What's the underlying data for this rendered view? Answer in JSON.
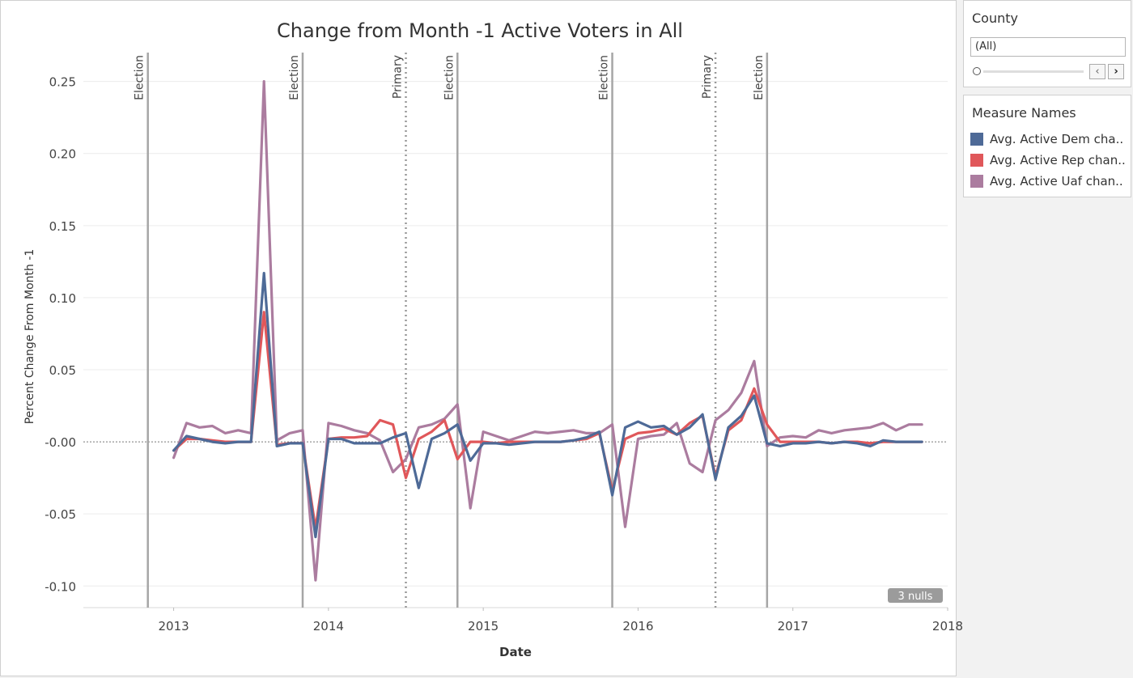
{
  "colors": {
    "dem": "#4e6a97",
    "rep": "#e0575a",
    "uaf": "#ab7c9f"
  },
  "filter": {
    "title": "County",
    "value": "(All)"
  },
  "legend": {
    "title": "Measure Names",
    "items": [
      {
        "label": "Avg. Active Dem cha..",
        "color": "#4e6a97"
      },
      {
        "label": "Avg. Active Rep chan..",
        "color": "#e0575a"
      },
      {
        "label": "Avg. Active Uaf chan..",
        "color": "#ab7c9f"
      }
    ]
  },
  "chart_data": {
    "type": "line",
    "title": "Change from Month -1 Active Voters in All",
    "xlabel": "Date",
    "ylabel": "Percent Change From Month -1",
    "xlim": [
      "2012-06",
      "2018-01"
    ],
    "ylim": [
      -0.115,
      0.27
    ],
    "x_ticks": [
      "2013",
      "2014",
      "2015",
      "2016",
      "2017",
      "2018"
    ],
    "y_ticks": [
      0.25,
      0.2,
      0.15,
      0.1,
      0.05,
      0.0,
      -0.05,
      -0.1
    ],
    "y_tick_labels": [
      "0.25",
      "0.20",
      "0.15",
      "0.10",
      "0.05",
      "-0.00",
      "-0.05",
      "-0.10"
    ],
    "grid": true,
    "legend_position": "right",
    "null_badge": "3 nulls",
    "events": [
      {
        "date": "2012-11",
        "label": "Election",
        "style": "solid"
      },
      {
        "date": "2013-11",
        "label": "Election",
        "style": "solid"
      },
      {
        "date": "2014-07",
        "label": "Primary",
        "style": "dotted"
      },
      {
        "date": "2014-11",
        "label": "Election",
        "style": "solid"
      },
      {
        "date": "2015-11",
        "label": "Election",
        "style": "solid"
      },
      {
        "date": "2016-07",
        "label": "Primary",
        "style": "dotted"
      },
      {
        "date": "2016-11",
        "label": "Election",
        "style": "solid"
      }
    ],
    "x": [
      "2013-01",
      "2013-02",
      "2013-03",
      "2013-04",
      "2013-05",
      "2013-06",
      "2013-07",
      "2013-08",
      "2013-09",
      "2013-10",
      "2013-11",
      "2013-12",
      "2014-01",
      "2014-02",
      "2014-03",
      "2014-04",
      "2014-05",
      "2014-06",
      "2014-07",
      "2014-08",
      "2014-09",
      "2014-10",
      "2014-11",
      "2014-12",
      "2015-01",
      "2015-02",
      "2015-03",
      "2015-04",
      "2015-05",
      "2015-06",
      "2015-07",
      "2015-08",
      "2015-09",
      "2015-10",
      "2015-11",
      "2015-12",
      "2016-01",
      "2016-02",
      "2016-03",
      "2016-04",
      "2016-05",
      "2016-06",
      "2016-07",
      "2016-08",
      "2016-09",
      "2016-10",
      "2016-11",
      "2016-12",
      "2017-01",
      "2017-02",
      "2017-03",
      "2017-04",
      "2017-05",
      "2017-06",
      "2017-07",
      "2017-08",
      "2017-09",
      "2017-10",
      "2017-11"
    ],
    "series": [
      {
        "name": "Avg. Active Uaf chan..",
        "color": "#ab7c9f",
        "values": [
          -0.011,
          0.013,
          0.01,
          0.011,
          0.006,
          0.008,
          0.006,
          0.25,
          0.001,
          0.006,
          0.008,
          -0.096,
          0.013,
          0.011,
          0.008,
          0.006,
          0.001,
          -0.021,
          -0.012,
          0.01,
          0.012,
          0.016,
          0.026,
          -0.046,
          0.007,
          0.004,
          0.001,
          0.004,
          0.007,
          0.006,
          0.007,
          0.008,
          0.006,
          0.006,
          0.012,
          -0.059,
          0.002,
          0.004,
          0.005,
          0.013,
          -0.015,
          -0.021,
          0.015,
          0.022,
          0.034,
          0.056,
          -0.003,
          0.003,
          0.004,
          0.003,
          0.008,
          0.006,
          0.008,
          0.009,
          0.01,
          0.013,
          0.008,
          0.012,
          0.012
        ]
      },
      {
        "name": "Avg. Active Rep chan..",
        "color": "#e0575a",
        "values": [
          -0.006,
          0.002,
          0.002,
          0.001,
          0.0,
          0.0,
          0.0,
          0.09,
          -0.002,
          -0.001,
          -0.001,
          -0.06,
          0.002,
          0.003,
          0.003,
          0.004,
          0.015,
          0.012,
          -0.025,
          0.002,
          0.007,
          0.015,
          -0.012,
          0.0,
          0.0,
          -0.001,
          0.0,
          0.0,
          0.0,
          0.0,
          0.0,
          0.001,
          0.002,
          0.006,
          -0.034,
          0.002,
          0.006,
          0.007,
          0.009,
          0.005,
          0.013,
          0.018,
          -0.024,
          0.008,
          0.015,
          0.037,
          0.012,
          0.0,
          0.0,
          0.0,
          0.0,
          -0.001,
          0.0,
          0.0,
          -0.001,
          0.0,
          0.0,
          0.0,
          0.0
        ]
      },
      {
        "name": "Avg. Active Dem cha..",
        "color": "#4e6a97",
        "values": [
          -0.006,
          0.004,
          0.002,
          0.0,
          -0.001,
          0.0,
          0.0,
          0.117,
          -0.003,
          -0.001,
          -0.001,
          -0.066,
          0.002,
          0.002,
          -0.001,
          -0.001,
          -0.001,
          0.003,
          0.006,
          -0.032,
          0.002,
          0.006,
          0.012,
          -0.013,
          -0.001,
          -0.001,
          -0.002,
          -0.001,
          0.0,
          0.0,
          0.0,
          0.001,
          0.003,
          0.007,
          -0.037,
          0.01,
          0.014,
          0.01,
          0.011,
          0.005,
          0.01,
          0.019,
          -0.026,
          0.01,
          0.018,
          0.032,
          -0.001,
          -0.003,
          -0.001,
          -0.001,
          0.0,
          -0.001,
          0.0,
          -0.001,
          -0.003,
          0.001,
          0.0,
          0.0,
          0.0
        ]
      }
    ]
  }
}
